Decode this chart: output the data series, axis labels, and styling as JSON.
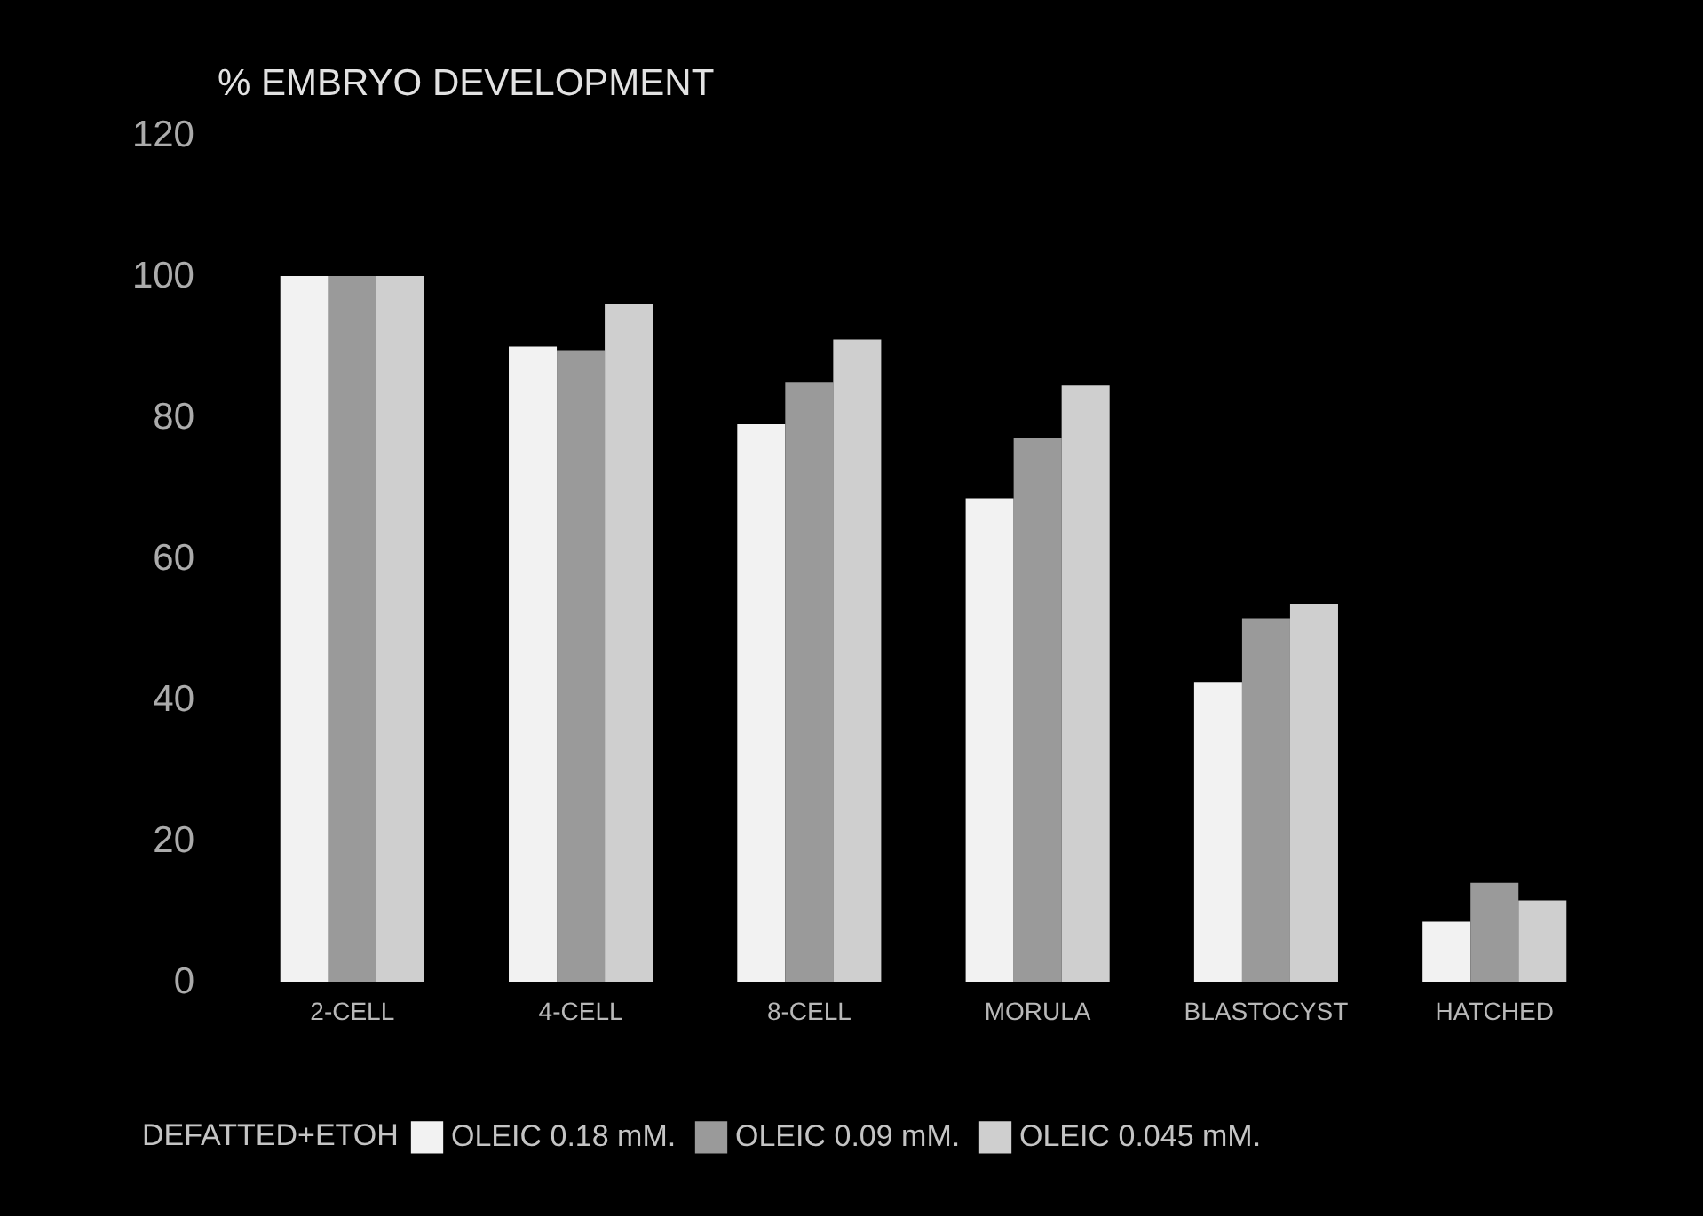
{
  "chart_data": {
    "type": "bar",
    "ylabel": "% EMBRYO DEVELOPMENT",
    "categories": [
      "2-CELL",
      "4-CELL",
      "8-CELL",
      "MORULA",
      "BLASTOCYST",
      "HATCHED"
    ],
    "series": [
      {
        "name": "OLEIC 0.18 mM.",
        "color": "#f2f2f2",
        "values": [
          100,
          90,
          79,
          68.5,
          42.5,
          8.5
        ]
      },
      {
        "name": "OLEIC 0.09 mM.",
        "color": "#9a9a9a",
        "values": [
          100,
          89.5,
          85,
          77,
          51.5,
          14
        ]
      },
      {
        "name": "OLEIC 0.045 mM.",
        "color": "#cfcfcf",
        "values": [
          100,
          96,
          91,
          84.5,
          53.5,
          11.5
        ]
      }
    ],
    "legend_title": "DEFATTED+ETOH",
    "legend": "bottom",
    "ylim": [
      0,
      120
    ],
    "yticks": [
      0,
      20,
      40,
      60,
      80,
      100,
      120
    ],
    "grid": false
  }
}
